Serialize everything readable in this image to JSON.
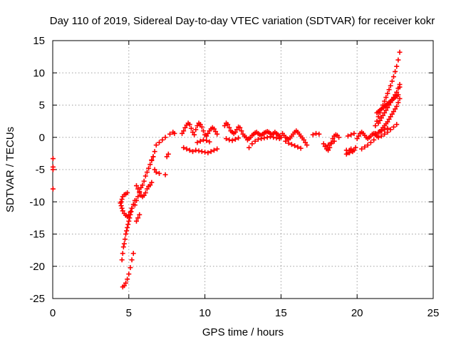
{
  "chart_data": {
    "type": "scatter",
    "title": "Day 110 of 2019, Sidereal Day-to-day VTEC variation (SDTVAR) for receiver kokr",
    "xlabel": "GPS time / hours",
    "ylabel": "SDTVAR / TECUs",
    "xlim": [
      0,
      25
    ],
    "ylim": [
      -25,
      15
    ],
    "xticks": [
      0,
      5,
      10,
      15,
      20,
      25
    ],
    "yticks": [
      -25,
      -20,
      -15,
      -10,
      -5,
      0,
      5,
      10,
      15
    ],
    "grid": true,
    "marker": "plus",
    "color": "#ff0000",
    "series": [
      {
        "name": "SDTVAR",
        "x": [
          0.02,
          0.02,
          0.02,
          0.02,
          4.5,
          4.55,
          4.6,
          4.7,
          4.8,
          4.9,
          4.45,
          4.5,
          4.55,
          4.6,
          4.7,
          4.8,
          4.9,
          5.0,
          5.1,
          5.2,
          5.3,
          5.4,
          4.55,
          4.6,
          4.65,
          4.7,
          4.75,
          4.8,
          4.85,
          4.9,
          4.95,
          5.0,
          5.05,
          5.1,
          5.15,
          5.2,
          4.6,
          4.7,
          4.8,
          4.9,
          5.0,
          5.1,
          5.2,
          5.3,
          5.4,
          5.5,
          5.6,
          5.7,
          5.8,
          5.9,
          6.0,
          6.1,
          6.2,
          6.3,
          6.4,
          6.5,
          6.6,
          5.5,
          5.6,
          5.7,
          5.8,
          5.9,
          6.0,
          6.1,
          6.2,
          6.3,
          6.4,
          6.5,
          5.5,
          5.6,
          5.7,
          6.5,
          6.6,
          6.7,
          6.8,
          7.0,
          7.2,
          7.4,
          6.7,
          6.8,
          7.0,
          7.4,
          7.5,
          7.6,
          7.7,
          7.9,
          8.0,
          8.5,
          8.6,
          8.7,
          8.8,
          8.9,
          9.0,
          9.1,
          9.2,
          8.6,
          8.8,
          9.0,
          9.2,
          9.3,
          9.4,
          9.5,
          9.6,
          9.7,
          9.8,
          9.9,
          10.0,
          10.1,
          10.2,
          10.3,
          10.4,
          10.5,
          10.6,
          10.7,
          10.8,
          9.4,
          9.6,
          9.8,
          10.0,
          10.2,
          10.4,
          10.6,
          10.8,
          9.5,
          9.7,
          9.9,
          10.1,
          10.3,
          11.3,
          11.4,
          11.5,
          11.6,
          11.7,
          11.8,
          11.9,
          12.0,
          12.1,
          12.2,
          12.3,
          12.4,
          12.5,
          12.6,
          12.7,
          11.4,
          11.6,
          11.8,
          12.0,
          12.2,
          12.8,
          12.9,
          13.0,
          13.1,
          13.2,
          13.3,
          13.4,
          13.5,
          13.6,
          13.7,
          13.8,
          13.9,
          14.0,
          14.1,
          14.2,
          14.3,
          14.4,
          14.5,
          14.6,
          14.7,
          14.8,
          14.9,
          15.0,
          12.9,
          13.1,
          13.3,
          13.5,
          13.7,
          13.9,
          14.1,
          14.3,
          14.5,
          14.7,
          14.9,
          15.1,
          15.2,
          15.3,
          15.4,
          15.5,
          15.6,
          15.7,
          15.8,
          15.9,
          16.0,
          16.1,
          16.2,
          16.3,
          16.4,
          16.5,
          16.6,
          16.7,
          15.3,
          15.5,
          15.7,
          15.9,
          16.1,
          16.3,
          17.1,
          17.3,
          17.5,
          17.8,
          17.9,
          18.0,
          18.1,
          18.2,
          18.3,
          18.4,
          18.5,
          18.6,
          18.7,
          18.8,
          17.9,
          18.1,
          18.3,
          18.5,
          19.3,
          19.4,
          19.5,
          19.6,
          19.7,
          19.8,
          19.9,
          19.4,
          19.6,
          19.8,
          19.3,
          19.5,
          19.7,
          20.0,
          20.1,
          20.2,
          20.3,
          20.4,
          20.5,
          20.6,
          20.7,
          20.8,
          20.9,
          21.0,
          21.1,
          21.2,
          21.3,
          21.4,
          20.3,
          20.5,
          20.7,
          20.9,
          21.1,
          21.2,
          21.3,
          21.4,
          21.5,
          21.6,
          21.7,
          21.8,
          21.9,
          22.0,
          22.1,
          22.2,
          22.3,
          22.4,
          22.5,
          22.6,
          22.7,
          22.8,
          21.4,
          21.5,
          21.6,
          21.7,
          21.8,
          21.9,
          22.0,
          22.1,
          22.2,
          22.3,
          22.4,
          22.5,
          22.6,
          22.7,
          22.8,
          21.5,
          21.6,
          21.7,
          21.8,
          21.9,
          22.0,
          22.1,
          22.2,
          22.3,
          22.4,
          22.5,
          22.6,
          22.7,
          22.8,
          21.6,
          21.8,
          22.0,
          22.2,
          22.4,
          22.6,
          21.3,
          21.4,
          21.5,
          21.6,
          21.7,
          21.8,
          21.9,
          22.0,
          22.1,
          22.2,
          22.3,
          22.4,
          22.5,
          22.6,
          22.7,
          22.8,
          21.2,
          21.4,
          21.6,
          21.8,
          22.0
        ],
        "y": [
          -3.3,
          -4.6,
          -5.0,
          -8.0,
          -10.0,
          -9.6,
          -9.2,
          -8.9,
          -8.8,
          -8.6,
          -10.2,
          -10.6,
          -11.0,
          -11.4,
          -11.8,
          -12.1,
          -12.3,
          -12.0,
          -11.6,
          -11.0,
          -10.4,
          -9.8,
          -19.0,
          -18.0,
          -17.0,
          -16.5,
          -15.8,
          -15.0,
          -14.5,
          -14.0,
          -13.5,
          -13.0,
          -12.5,
          -12.0,
          -11.5,
          -11.0,
          -23.2,
          -23.0,
          -22.6,
          -22.0,
          -21.2,
          -20.2,
          -19.0,
          -18.0,
          -10.5,
          -9.8,
          -9.2,
          -8.4,
          -7.8,
          -7.4,
          -6.8,
          -6.0,
          -5.4,
          -4.8,
          -4.2,
          -3.6,
          -3.0,
          -7.5,
          -8.0,
          -8.6,
          -9.0,
          -9.2,
          -9.0,
          -8.6,
          -8.0,
          -7.6,
          -7.4,
          -7.0,
          -13.0,
          -12.5,
          -12.0,
          -3.5,
          -3.0,
          -2.2,
          -1.2,
          -0.8,
          -0.4,
          0.0,
          -5.0,
          -5.4,
          -5.6,
          -5.8,
          -3.0,
          -2.6,
          0.5,
          0.8,
          0.6,
          0.6,
          1.0,
          1.5,
          1.9,
          2.2,
          2.0,
          1.4,
          0.8,
          -1.6,
          -1.8,
          -2.0,
          -2.2,
          0.4,
          1.2,
          1.8,
          2.2,
          2.0,
          1.6,
          1.0,
          0.4,
          0.2,
          0.6,
          1.0,
          1.3,
          1.5,
          1.3,
          0.9,
          0.5,
          -2.0,
          -2.1,
          -2.2,
          -2.3,
          -2.4,
          -2.2,
          -2.0,
          -1.8,
          -0.8,
          -0.6,
          -0.4,
          -0.5,
          -0.7,
          1.8,
          2.2,
          2.0,
          1.5,
          1.0,
          0.8,
          0.6,
          0.8,
          1.2,
          1.6,
          1.5,
          1.0,
          0.5,
          0.2,
          0.0,
          -0.2,
          -0.4,
          -0.5,
          -0.3,
          -0.1,
          -0.4,
          -0.2,
          0.0,
          0.3,
          0.5,
          0.7,
          0.8,
          0.6,
          0.4,
          0.3,
          0.5,
          0.7,
          0.8,
          0.9,
          0.8,
          0.6,
          0.4,
          0.6,
          0.8,
          0.6,
          0.4,
          0.2,
          0.0,
          -1.6,
          -1.0,
          -0.6,
          -0.3,
          -0.2,
          -0.1,
          0.0,
          0.1,
          0.0,
          -0.1,
          -0.2,
          0.6,
          0.3,
          0.0,
          -0.2,
          -0.3,
          -0.1,
          0.2,
          0.5,
          0.8,
          1.0,
          0.8,
          0.5,
          0.2,
          -0.1,
          -0.4,
          -0.8,
          -1.2,
          -0.6,
          -0.9,
          -1.1,
          -1.3,
          -1.5,
          -1.7,
          0.4,
          0.6,
          0.5,
          -1.0,
          -1.4,
          -1.8,
          -2.0,
          -1.6,
          -0.8,
          -0.2,
          0.2,
          0.4,
          0.3,
          0.0,
          -1.4,
          -1.2,
          -1.0,
          -0.6,
          -2.0,
          -2.4,
          -2.0,
          -1.8,
          -2.2,
          -2.0,
          -1.6,
          0.2,
          0.4,
          0.6,
          -2.6,
          -2.4,
          -2.2,
          -0.2,
          0.2,
          0.6,
          0.8,
          0.6,
          0.3,
          0.0,
          -0.2,
          0.0,
          0.2,
          0.5,
          0.6,
          0.4,
          0.2,
          0.0,
          -1.8,
          -1.5,
          -1.2,
          -0.8,
          -0.4,
          1.8,
          2.5,
          3.2,
          3.8,
          4.4,
          5.0,
          5.6,
          6.2,
          6.8,
          7.4,
          8.0,
          8.7,
          9.4,
          10.2,
          11.0,
          12.0,
          13.2,
          2.2,
          2.6,
          3.0,
          3.4,
          3.8,
          4.2,
          4.6,
          5.0,
          5.4,
          5.8,
          6.2,
          6.6,
          7.0,
          7.6,
          8.2,
          0.8,
          1.2,
          1.5,
          1.8,
          2.1,
          2.4,
          2.8,
          3.2,
          3.6,
          4.0,
          4.4,
          4.8,
          5.4,
          6.0,
          0.2,
          0.5,
          0.8,
          1.2,
          1.6,
          2.0,
          3.8,
          4.0,
          4.2,
          4.4,
          4.6,
          4.8,
          5.0,
          5.2,
          5.4,
          5.6,
          5.8,
          6.0,
          6.2,
          6.4,
          6.6,
          7.8,
          0.6,
          0.8,
          1.0,
          1.2,
          1.4
        ]
      }
    ]
  }
}
